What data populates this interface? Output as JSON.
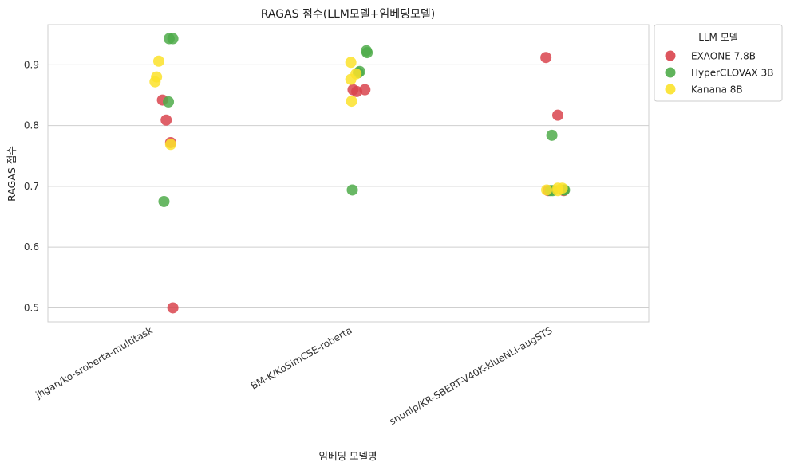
{
  "chart_data": {
    "type": "scatter",
    "title": "RAGAS 점수(LLM모델+임베딩모델)",
    "xlabel": "임베딩 모델명",
    "ylabel": "RAGAS 점수",
    "categories": [
      "jhgan/ko-sroberta-multitask",
      "BM-K/KoSimCSE-roberta",
      "snunlp/KR-SBERT-V40K-klueNLI-augSTS"
    ],
    "ylim": [
      0.477,
      0.966
    ],
    "yticks": [
      0.5,
      0.6,
      0.7,
      0.8,
      0.9
    ],
    "grid": true,
    "legend": {
      "title": "LLM 모델",
      "placement": "upper-right-outside"
    },
    "series": [
      {
        "name": "EXAONE 7.8B",
        "color": "#d9444d",
        "points": [
          {
            "category": 0,
            "jitter": 0.2,
            "y": 0.842
          },
          {
            "category": 0,
            "jitter": 0.25,
            "y": 0.809
          },
          {
            "category": 0,
            "jitter": 0.31,
            "y": 0.772
          },
          {
            "category": 0,
            "jitter": 0.34,
            "y": 0.5
          },
          {
            "category": 1,
            "jitter": 0.08,
            "y": 0.859
          },
          {
            "category": 1,
            "jitter": 0.13,
            "y": 0.856
          },
          {
            "category": 1,
            "jitter": 0.24,
            "y": 0.859
          },
          {
            "category": 2,
            "jitter": -0.02,
            "y": 0.912
          },
          {
            "category": 2,
            "jitter": 0.14,
            "y": 0.817
          },
          {
            "category": 2,
            "jitter": 0.01,
            "y": 0.693
          },
          {
            "category": 2,
            "jitter": 0.22,
            "y": 0.693
          }
        ]
      },
      {
        "name": "HyperCLOVAX 3B",
        "color": "#4fac4a",
        "points": [
          {
            "category": 0,
            "jitter": 0.29,
            "y": 0.943
          },
          {
            "category": 0,
            "jitter": 0.34,
            "y": 0.943
          },
          {
            "category": 0,
            "jitter": 0.28,
            "y": 0.839
          },
          {
            "category": 0,
            "jitter": 0.22,
            "y": 0.675
          },
          {
            "category": 1,
            "jitter": 0.07,
            "y": 0.694
          },
          {
            "category": 1,
            "jitter": 0.15,
            "y": 0.887
          },
          {
            "category": 1,
            "jitter": 0.17,
            "y": 0.889
          },
          {
            "category": 1,
            "jitter": 0.26,
            "y": 0.923
          },
          {
            "category": 1,
            "jitter": 0.27,
            "y": 0.92
          },
          {
            "category": 2,
            "jitter": 0.06,
            "y": 0.784
          },
          {
            "category": 2,
            "jitter": 0.04,
            "y": 0.693
          },
          {
            "category": 2,
            "jitter": 0.07,
            "y": 0.693
          },
          {
            "category": 2,
            "jitter": 0.22,
            "y": 0.694
          },
          {
            "category": 2,
            "jitter": 0.23,
            "y": 0.694
          }
        ]
      },
      {
        "name": "Kanana 8B",
        "color": "#fbe22a",
        "points": [
          {
            "category": 0,
            "jitter": 0.1,
            "y": 0.872
          },
          {
            "category": 0,
            "jitter": 0.12,
            "y": 0.88
          },
          {
            "category": 0,
            "jitter": 0.15,
            "y": 0.906
          },
          {
            "category": 0,
            "jitter": 0.31,
            "y": 0.769
          },
          {
            "category": 1,
            "jitter": 0.05,
            "y": 0.904
          },
          {
            "category": 1,
            "jitter": 0.05,
            "y": 0.876
          },
          {
            "category": 1,
            "jitter": 0.06,
            "y": 0.84
          },
          {
            "category": 1,
            "jitter": 0.12,
            "y": 0.885
          },
          {
            "category": 2,
            "jitter": -0.01,
            "y": 0.694
          },
          {
            "category": 2,
            "jitter": 0.14,
            "y": 0.697
          },
          {
            "category": 2,
            "jitter": 0.14,
            "y": 0.693
          },
          {
            "category": 2,
            "jitter": 0.2,
            "y": 0.697
          }
        ]
      }
    ]
  }
}
